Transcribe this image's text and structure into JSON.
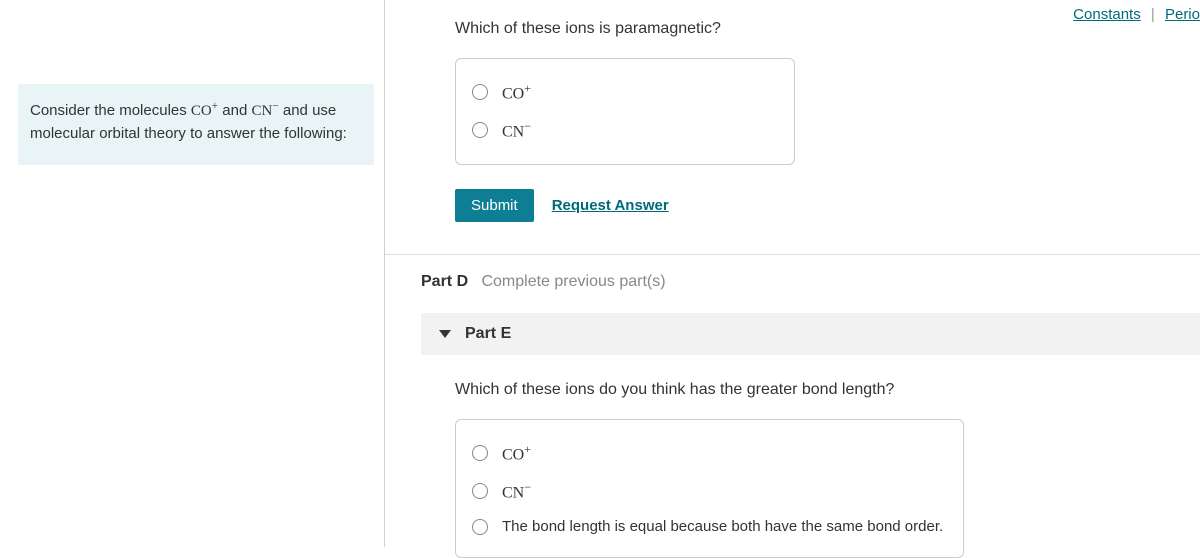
{
  "header": {
    "constants_link": "Constants",
    "periodic_link": "Perio"
  },
  "left_prompt": {
    "prefix": "Consider the molecules ",
    "mol1_html": "CO<span class=\"sup\">+</span>",
    "mid": " and ",
    "mol2_html": "CN<span class=\"sup\">−</span>",
    "suffix": " and use molecular orbital theory to answer the following:"
  },
  "partC": {
    "question": "Which of these ions is paramagnetic?",
    "options": [
      {
        "html": "CO<span class=\"sup\">+</span>"
      },
      {
        "html": "CN<span class=\"sup\">−</span>"
      }
    ],
    "submit_label": "Submit",
    "request_label": "Request Answer"
  },
  "partD": {
    "label": "Part D",
    "note": "Complete previous part(s)"
  },
  "partE": {
    "header": "Part E",
    "question": "Which of these ions do you think has the greater bond length?",
    "options": [
      {
        "html": "CO<span class=\"sup\">+</span>",
        "serif": true
      },
      {
        "html": "CN<span class=\"sup\">−</span>",
        "serif": true
      },
      {
        "html": "The bond length is equal because both have the same bond order.",
        "serif": false
      }
    ]
  }
}
